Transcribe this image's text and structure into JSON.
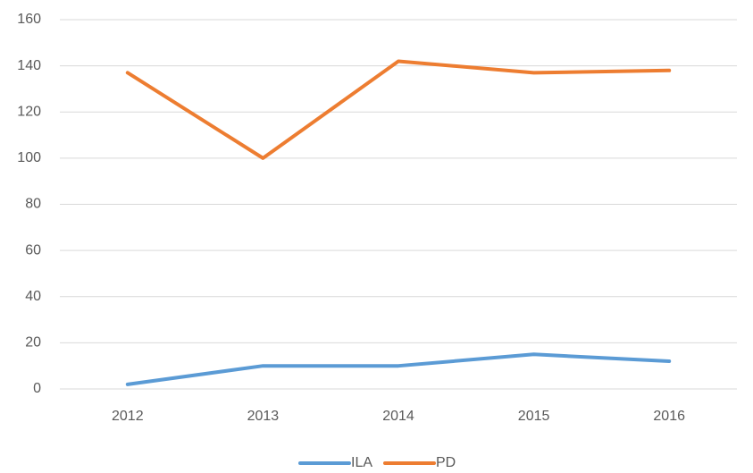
{
  "chart_data": {
    "type": "line",
    "categories": [
      "2012",
      "2013",
      "2014",
      "2015",
      "2016"
    ],
    "series": [
      {
        "name": "ILA",
        "color": "#5b9bd5",
        "values": [
          2,
          10,
          10,
          15,
          12
        ]
      },
      {
        "name": "PD",
        "color": "#ed7d31",
        "values": [
          137,
          100,
          142,
          137,
          138
        ]
      }
    ],
    "ylim": [
      0,
      160
    ],
    "yticks": [
      0,
      20,
      40,
      60,
      80,
      100,
      120,
      140,
      160
    ],
    "grid": true,
    "legend": "bottom"
  }
}
